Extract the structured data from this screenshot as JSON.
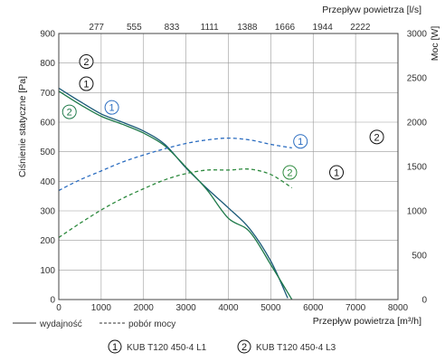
{
  "chart_data": {
    "type": "line",
    "xlabel": "Przepływ powietrza [m³/h]",
    "x2label": "Przepływ powietrza [l/s]",
    "ylabel": "Ciśnienie statyczne [Pa]",
    "y2label": "Moc [W]",
    "xlim": [
      0,
      8000
    ],
    "ylim": [
      0,
      900
    ],
    "y2lim": [
      0,
      3000
    ],
    "x_ticks": [
      "0",
      "1000",
      "2000",
      "3000",
      "4000",
      "5000",
      "6000",
      "7000",
      "8000"
    ],
    "x2_ticks": [
      "277",
      "555",
      "833",
      "1111",
      "1388",
      "1666",
      "1944",
      "2222"
    ],
    "y_ticks": [
      "100",
      "200",
      "300",
      "400",
      "500",
      "600",
      "700",
      "800",
      "900"
    ],
    "y2_ticks": [
      "0",
      "500",
      "1000",
      "1500",
      "2000",
      "2500",
      "3000"
    ],
    "grid": true,
    "series": [
      {
        "name": "KUB T120 450-4 L1",
        "marker": "1",
        "kind": "wydajność",
        "axis": "left",
        "color": "#1a5a78",
        "x": [
          0,
          500,
          1000,
          1500,
          2000,
          2500,
          3000,
          3500,
          4000,
          4500,
          5000,
          5400
        ],
        "y": [
          715,
          670,
          628,
          600,
          570,
          525,
          445,
          375,
          310,
          240,
          130,
          5
        ]
      },
      {
        "name": "KUB T120 450-4 L3",
        "marker": "2",
        "kind": "wydajność",
        "axis": "left",
        "color": "#1f7a4a",
        "x": [
          0,
          500,
          1000,
          1500,
          2000,
          2500,
          3000,
          3500,
          4000,
          4500,
          5000,
          5500
        ],
        "y": [
          705,
          660,
          620,
          593,
          563,
          520,
          448,
          370,
          275,
          230,
          118,
          0
        ]
      },
      {
        "name": "KUB T120 450-4 L1",
        "marker": "1",
        "kind": "pobór mocy",
        "axis": "right",
        "color": "#2a6cc0",
        "x": [
          0,
          500,
          1000,
          1500,
          2000,
          2500,
          3000,
          3500,
          4000,
          4500,
          5000,
          5500
        ],
        "y": [
          1230,
          1350,
          1450,
          1550,
          1630,
          1700,
          1760,
          1800,
          1820,
          1800,
          1750,
          1710
        ]
      },
      {
        "name": "KUB T120 450-4 L3",
        "marker": "2",
        "kind": "pobór mocy",
        "axis": "right",
        "color": "#2d8a3e",
        "x": [
          0,
          500,
          1000,
          1500,
          2000,
          2500,
          3000,
          3500,
          4000,
          4500,
          5000,
          5500
        ],
        "y": [
          700,
          860,
          1010,
          1140,
          1250,
          1350,
          1420,
          1460,
          1460,
          1470,
          1410,
          1260
        ]
      }
    ],
    "annotations": [
      {
        "text": "2",
        "x": 650,
        "y": 805
      },
      {
        "text": "1",
        "x": 650,
        "y": 730
      },
      {
        "text": "2",
        "x": 250,
        "y": 635
      },
      {
        "text": "1",
        "x": 1250,
        "y": 650
      },
      {
        "text": "1",
        "x": 5700,
        "y": 535
      },
      {
        "text": "2",
        "x": 5450,
        "y": 430
      },
      {
        "text": "2",
        "x": 7500,
        "y": 550
      },
      {
        "text": "1",
        "x": 6550,
        "y": 430
      }
    ],
    "legend": {
      "placement": "bottom",
      "solid_label": "wydajność",
      "dashed_label": "pobór mocy",
      "items": [
        {
          "marker": "1",
          "label": "KUB T120 450-4 L1"
        },
        {
          "marker": "2",
          "label": "KUB T120 450-4 L3"
        }
      ]
    }
  }
}
